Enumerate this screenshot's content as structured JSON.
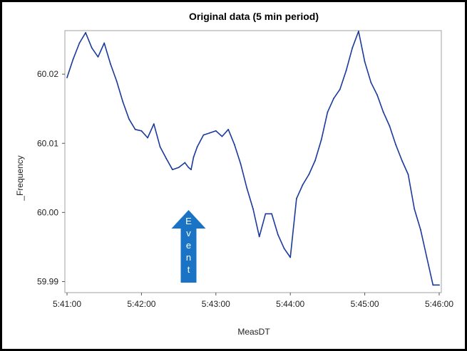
{
  "chart_data": {
    "type": "line",
    "title": "Original data (5 min period)",
    "xlabel": "MeasDT",
    "ylabel": "_Frequency",
    "x_ticks": [
      "5:41:00",
      "5:42:00",
      "5:43:00",
      "5:44:00",
      "5:45:00",
      "5:46:00"
    ],
    "y_ticks": [
      "59.99",
      "60.00",
      "60.01",
      "60.02"
    ],
    "xlim": [
      "5:41:00",
      "5:46:00"
    ],
    "ylim": [
      59.9884,
      60.0263
    ],
    "grid": false,
    "annotation": {
      "text": "Event",
      "at": "5:42:38"
    },
    "series_color": "#1a3a9c",
    "annotation_color": "#1a73c4",
    "series": [
      {
        "x": [
          "5:41:00",
          "5:41:05",
          "5:41:10",
          "5:41:15",
          "5:41:20",
          "5:41:25",
          "5:41:30",
          "5:41:35",
          "5:41:40",
          "5:41:45",
          "5:41:50",
          "5:41:55",
          "5:42:00",
          "5:42:05",
          "5:42:10",
          "5:42:15",
          "5:42:20",
          "5:42:25",
          "5:42:30",
          "5:42:35",
          "5:42:38",
          "5:42:40",
          "5:42:42",
          "5:42:45",
          "5:42:50",
          "5:42:55",
          "5:43:00",
          "5:43:05",
          "5:43:10",
          "5:43:15",
          "5:43:20",
          "5:43:25",
          "5:43:30",
          "5:43:35",
          "5:43:40",
          "5:43:45",
          "5:43:50",
          "5:43:55",
          "5:44:00",
          "5:44:05",
          "5:44:10",
          "5:44:15",
          "5:44:20",
          "5:44:25",
          "5:44:30",
          "5:44:35",
          "5:44:40",
          "5:44:45",
          "5:44:50",
          "5:44:55",
          "5:45:00",
          "5:45:05",
          "5:45:10",
          "5:45:15",
          "5:45:20",
          "5:45:25",
          "5:45:30",
          "5:45:35",
          "5:45:40",
          "5:45:45",
          "5:45:50",
          "5:45:55",
          "5:46:00"
        ],
        "y": [
          60.0195,
          60.0222,
          60.0245,
          60.026,
          60.0238,
          60.0225,
          60.0245,
          60.0215,
          60.019,
          60.016,
          60.0135,
          60.012,
          60.0118,
          60.0108,
          60.0128,
          60.0095,
          60.0078,
          60.0062,
          60.0065,
          60.0072,
          60.0065,
          60.0062,
          60.008,
          60.0095,
          60.0112,
          60.0115,
          60.0118,
          60.011,
          60.012,
          60.0098,
          60.007,
          60.0035,
          60.0005,
          59.9965,
          59.9998,
          59.9998,
          59.9968,
          59.9948,
          59.9935,
          60.002,
          60.004,
          60.0055,
          60.0075,
          60.0105,
          60.0145,
          60.0165,
          60.0178,
          60.0205,
          60.0238,
          60.0262,
          60.0218,
          60.0188,
          60.017,
          60.0145,
          60.0125,
          60.0098,
          60.0075,
          60.0055,
          60.0005,
          59.9975,
          59.9935,
          59.9895,
          59.9895
        ]
      }
    ]
  }
}
